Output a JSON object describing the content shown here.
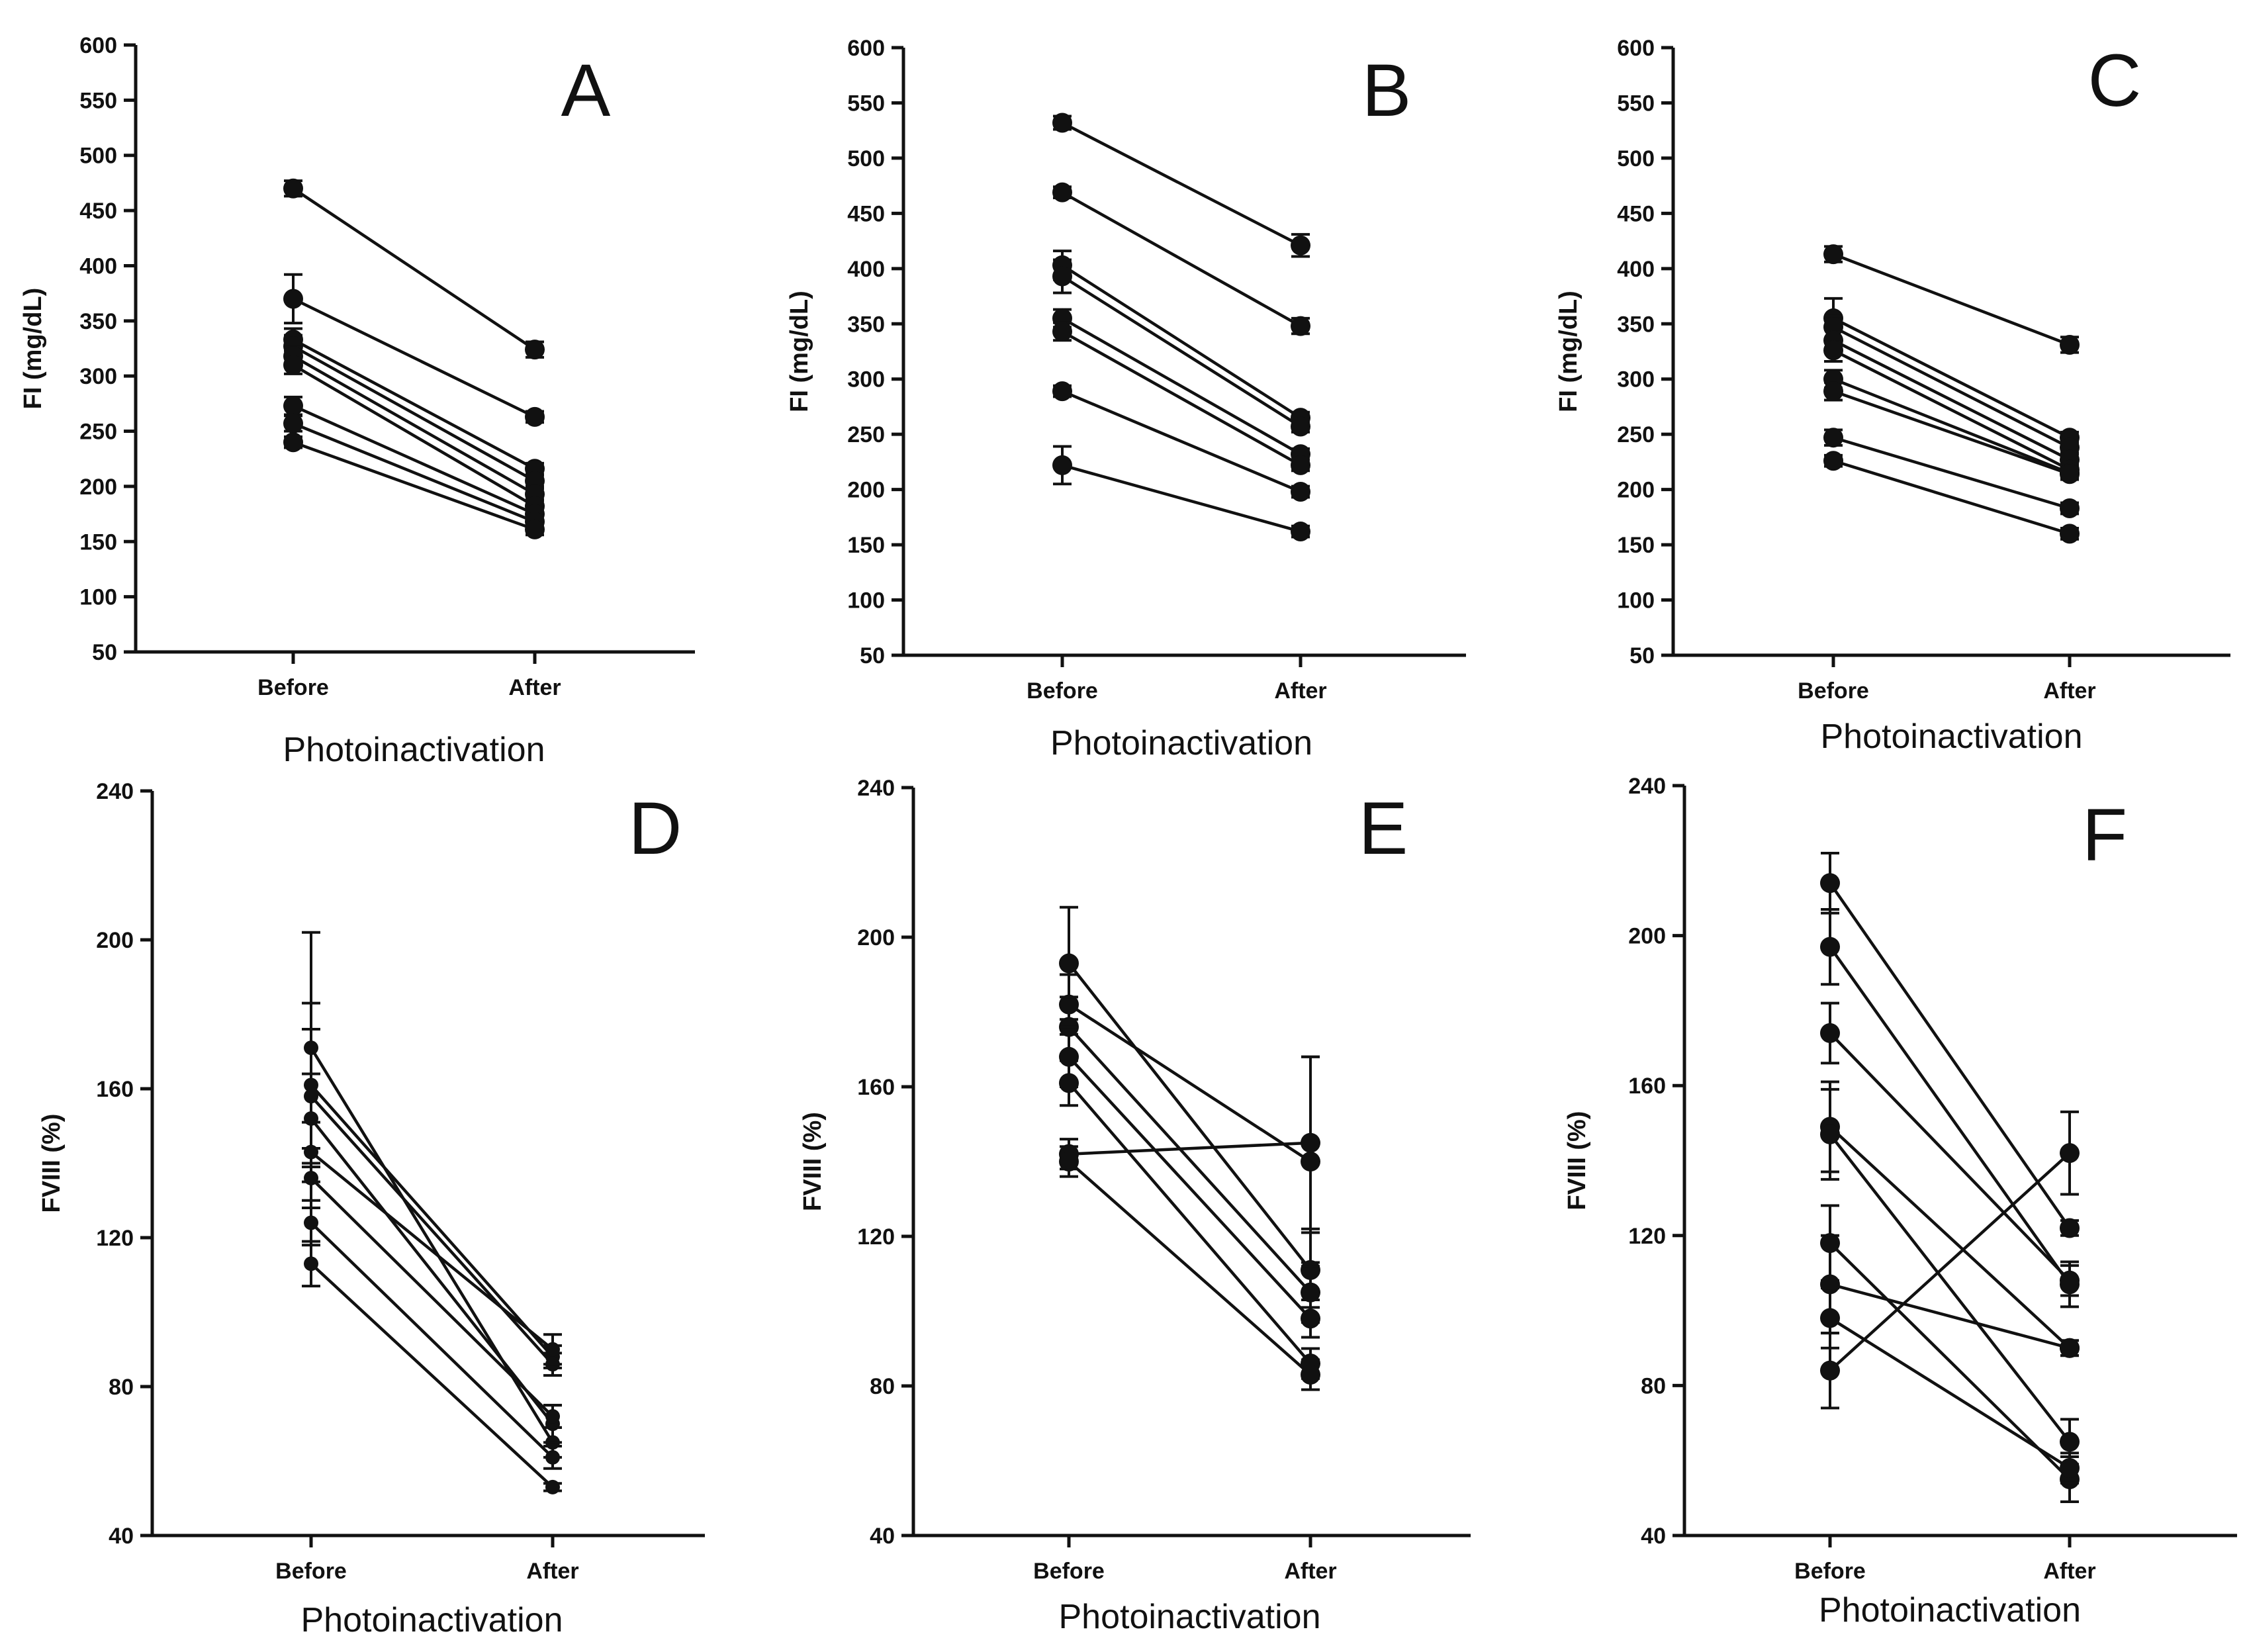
{
  "figure": {
    "background": "#ffffff",
    "mark_color": "#111111"
  },
  "chart_data": [
    {
      "panel": "A",
      "type": "line",
      "ylabel": "FI (mg/dL)",
      "xlabel": "Photoinactivation",
      "categories": [
        "Before",
        "After"
      ],
      "ylim": [
        50,
        600
      ],
      "yticks": [
        50,
        100,
        150,
        200,
        250,
        300,
        350,
        400,
        450,
        500,
        550,
        600
      ],
      "series": [
        {
          "values": [
            470,
            324
          ],
          "errors": [
            7,
            7
          ]
        },
        {
          "values": [
            370,
            263
          ],
          "errors": [
            22,
            5
          ]
        },
        {
          "values": [
            333,
            216
          ],
          "errors": [
            10,
            5
          ]
        },
        {
          "values": [
            327,
            205
          ],
          "errors": [
            10,
            5
          ]
        },
        {
          "values": [
            318,
            193
          ],
          "errors": [
            8,
            5
          ]
        },
        {
          "values": [
            310,
            182
          ],
          "errors": [
            8,
            5
          ]
        },
        {
          "values": [
            273,
            175
          ],
          "errors": [
            8,
            5
          ]
        },
        {
          "values": [
            257,
            168
          ],
          "errors": [
            7,
            5
          ]
        },
        {
          "values": [
            240,
            161
          ],
          "errors": [
            5,
            5
          ]
        }
      ]
    },
    {
      "panel": "B",
      "type": "line",
      "ylabel": "FI (mg/dL)",
      "xlabel": "Photoinactivation",
      "categories": [
        "Before",
        "After"
      ],
      "ylim": [
        50,
        600
      ],
      "yticks": [
        50,
        100,
        150,
        200,
        250,
        300,
        350,
        400,
        450,
        500,
        550,
        600
      ],
      "series": [
        {
          "values": [
            532,
            421
          ],
          "errors": [
            6,
            10
          ]
        },
        {
          "values": [
            469,
            348
          ],
          "errors": [
            5,
            7
          ]
        },
        {
          "values": [
            403,
            265
          ],
          "errors": [
            13,
            5
          ]
        },
        {
          "values": [
            393,
            257
          ],
          "errors": [
            15,
            5
          ]
        },
        {
          "values": [
            355,
            232
          ],
          "errors": [
            8,
            5
          ]
        },
        {
          "values": [
            343,
            222
          ],
          "errors": [
            8,
            5
          ]
        },
        {
          "values": [
            289,
            198
          ],
          "errors": [
            5,
            5
          ]
        },
        {
          "values": [
            222,
            162
          ],
          "errors": [
            17,
            5
          ]
        }
      ]
    },
    {
      "panel": "C",
      "type": "line",
      "ylabel": "FI (mg/dL)",
      "xlabel": "Photoinactivation",
      "categories": [
        "Before",
        "After"
      ],
      "ylim": [
        50,
        600
      ],
      "yticks": [
        50,
        100,
        150,
        200,
        250,
        300,
        350,
        400,
        450,
        500,
        550,
        600
      ],
      "series": [
        {
          "values": [
            413,
            331
          ],
          "errors": [
            7,
            7
          ]
        },
        {
          "values": [
            355,
            247
          ],
          "errors": [
            18,
            5
          ]
        },
        {
          "values": [
            347,
            238
          ],
          "errors": [
            10,
            5
          ]
        },
        {
          "values": [
            335,
            227
          ],
          "errors": [
            10,
            5
          ]
        },
        {
          "values": [
            326,
            218
          ],
          "errors": [
            10,
            5
          ]
        },
        {
          "values": [
            300,
            215
          ],
          "errors": [
            8,
            5
          ]
        },
        {
          "values": [
            289,
            214
          ],
          "errors": [
            8,
            5
          ]
        },
        {
          "values": [
            247,
            183
          ],
          "errors": [
            7,
            5
          ]
        },
        {
          "values": [
            226,
            160
          ],
          "errors": [
            5,
            5
          ]
        }
      ]
    },
    {
      "panel": "D",
      "type": "line",
      "ylabel": "FVIII (%)",
      "xlabel": "Photoinactivation",
      "categories": [
        "Before",
        "After"
      ],
      "ylim": [
        40,
        240
      ],
      "yticks": [
        40,
        80,
        120,
        160,
        200,
        240
      ],
      "series": [
        {
          "values": [
            171,
            65
          ],
          "errors": [
            31,
            4
          ],
          "small": true
        },
        {
          "values": [
            161,
            88
          ],
          "errors": [
            22,
            3
          ],
          "small": true
        },
        {
          "values": [
            158,
            86
          ],
          "errors": [
            18,
            3
          ],
          "small": true
        },
        {
          "values": [
            152,
            70
          ],
          "errors": [
            12,
            5
          ],
          "small": true
        },
        {
          "values": [
            143,
            90
          ],
          "errors": [
            8,
            4
          ],
          "small": true
        },
        {
          "values": [
            136,
            72
          ],
          "errors": [
            8,
            3
          ],
          "small": true
        },
        {
          "values": [
            124,
            61
          ],
          "errors": [
            6,
            3
          ],
          "small": true
        },
        {
          "values": [
            113,
            53
          ],
          "errors": [
            6,
            1
          ],
          "small": true
        }
      ]
    },
    {
      "panel": "E",
      "type": "line",
      "ylabel": "FVIII (%)",
      "xlabel": "Photoinactivation",
      "categories": [
        "Before",
        "After"
      ],
      "ylim": [
        40,
        240
      ],
      "yticks": [
        40,
        80,
        120,
        160,
        200,
        240
      ],
      "series": [
        {
          "values": [
            193,
            111
          ],
          "errors": [
            15,
            10
          ]
        },
        {
          "values": [
            182,
            140
          ],
          "errors": [
            8,
            28
          ]
        },
        {
          "values": [
            176,
            105
          ],
          "errors": [
            8,
            8
          ]
        },
        {
          "values": [
            168,
            98
          ],
          "errors": [
            8,
            5
          ]
        },
        {
          "values": [
            161,
            86
          ],
          "errors": [
            6,
            4
          ]
        },
        {
          "values": [
            142,
            145
          ],
          "errors": [
            4,
            23
          ]
        },
        {
          "values": [
            140,
            83
          ],
          "errors": [
            4,
            4
          ]
        }
      ]
    },
    {
      "panel": "F",
      "type": "line",
      "ylabel": "FVIII (%)",
      "xlabel": "Photoinactivation",
      "categories": [
        "Before",
        "After"
      ],
      "ylim": [
        40,
        240
      ],
      "yticks": [
        40,
        80,
        120,
        160,
        200,
        240
      ],
      "series": [
        {
          "values": [
            214,
            122
          ],
          "errors": [
            8,
            2
          ]
        },
        {
          "values": [
            197,
            107
          ],
          "errors": [
            10,
            6
          ]
        },
        {
          "values": [
            174,
            108
          ],
          "errors": [
            8,
            4
          ]
        },
        {
          "values": [
            149,
            90
          ],
          "errors": [
            12,
            2
          ]
        },
        {
          "values": [
            147,
            65
          ],
          "errors": [
            12,
            6
          ]
        },
        {
          "values": [
            118,
            55
          ],
          "errors": [
            10,
            6
          ]
        },
        {
          "values": [
            107,
            90
          ],
          "errors": [
            13,
            2
          ]
        },
        {
          "values": [
            98,
            58
          ],
          "errors": [
            8,
            4
          ]
        },
        {
          "values": [
            84,
            142
          ],
          "errors": [
            10,
            11
          ]
        }
      ]
    }
  ]
}
